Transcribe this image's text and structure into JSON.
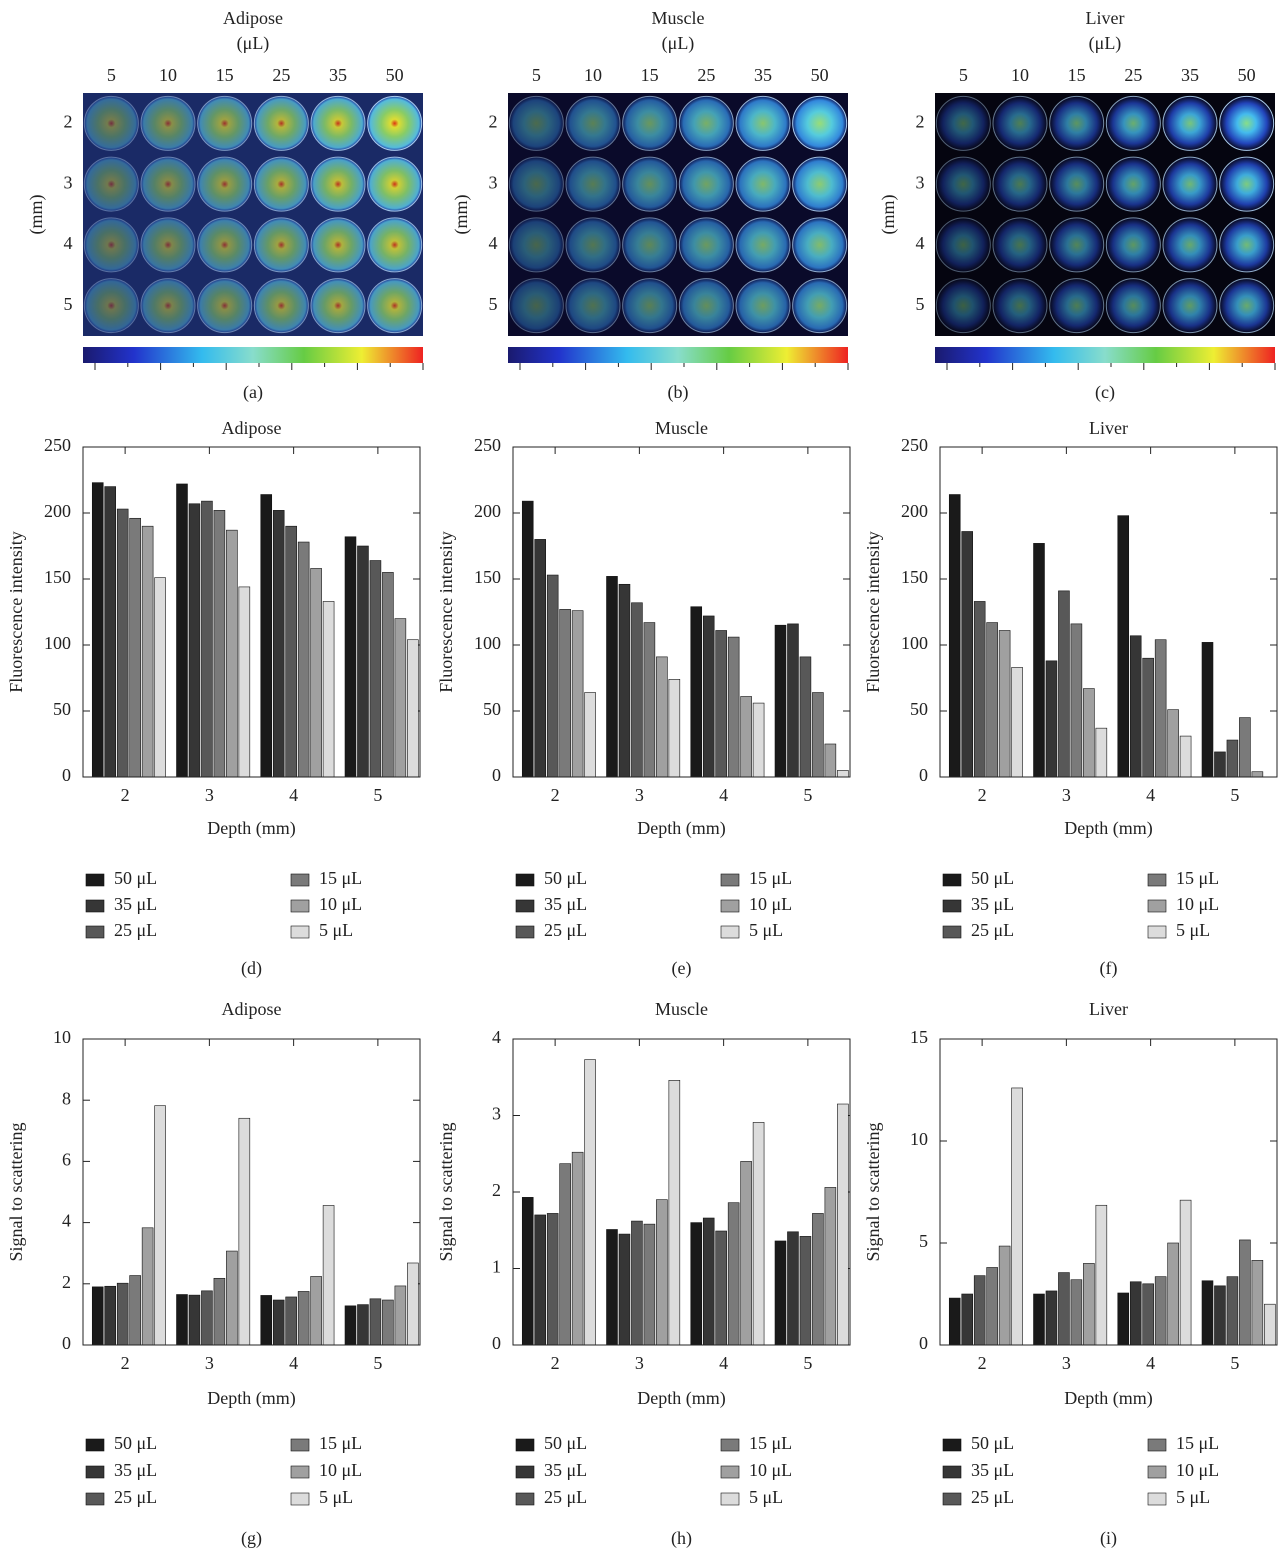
{
  "chart_data": [
    {
      "type": "image",
      "title": "Adipose",
      "unit": "(μL)",
      "columns": [
        "5",
        "10",
        "15",
        "25",
        "35",
        "50"
      ],
      "rows": [
        "2",
        "3",
        "4",
        "5"
      ],
      "ylabel": "(mm)",
      "label": "(a)"
    },
    {
      "type": "image",
      "title": "Muscle",
      "unit": "(μL)",
      "columns": [
        "5",
        "10",
        "15",
        "25",
        "35",
        "50"
      ],
      "rows": [
        "2",
        "3",
        "4",
        "5"
      ],
      "ylabel": "(mm)",
      "label": "(b)"
    },
    {
      "type": "image",
      "title": "Liver",
      "unit": "(μL)",
      "columns": [
        "5",
        "10",
        "15",
        "25",
        "35",
        "50"
      ],
      "rows": [
        "2",
        "3",
        "4",
        "5"
      ],
      "ylabel": "(mm)",
      "label": "(c)"
    },
    {
      "type": "bar",
      "title": "Adipose",
      "xlabel": "Depth (mm)",
      "ylabel": "Fluorescence intensity",
      "label": "(d)",
      "categories": [
        "2",
        "3",
        "4",
        "5"
      ],
      "ylim": [
        0,
        250
      ],
      "yticks": [
        0,
        50,
        100,
        150,
        200,
        250
      ],
      "series": [
        {
          "name": "50 μL",
          "color": "#1a1a1a",
          "values": [
            223,
            222,
            214,
            182
          ]
        },
        {
          "name": "35 μL",
          "color": "#363636",
          "values": [
            220,
            207,
            202,
            175
          ]
        },
        {
          "name": "25 μL",
          "color": "#585858",
          "values": [
            203,
            209,
            190,
            164
          ]
        },
        {
          "name": "15 μL",
          "color": "#7a7a7a",
          "values": [
            196,
            202,
            178,
            155
          ]
        },
        {
          "name": "10 μL",
          "color": "#a0a0a0",
          "values": [
            190,
            187,
            158,
            120
          ]
        },
        {
          "name": "5 μL",
          "color": "#dcdcdc",
          "values": [
            151,
            144,
            133,
            104
          ]
        }
      ]
    },
    {
      "type": "bar",
      "title": "Muscle",
      "xlabel": "Depth (mm)",
      "ylabel": "Fluorescence intensity",
      "label": "(e)",
      "categories": [
        "2",
        "3",
        "4",
        "5"
      ],
      "ylim": [
        0,
        250
      ],
      "yticks": [
        0,
        50,
        100,
        150,
        200,
        250
      ],
      "series": [
        {
          "name": "50 μL",
          "color": "#1a1a1a",
          "values": [
            209,
            152,
            129,
            115
          ]
        },
        {
          "name": "35 μL",
          "color": "#363636",
          "values": [
            180,
            146,
            122,
            116
          ]
        },
        {
          "name": "25 μL",
          "color": "#585858",
          "values": [
            153,
            132,
            111,
            91
          ]
        },
        {
          "name": "15 μL",
          "color": "#7a7a7a",
          "values": [
            127,
            117,
            106,
            64
          ]
        },
        {
          "name": "10 μL",
          "color": "#a0a0a0",
          "values": [
            126,
            91,
            61,
            25
          ]
        },
        {
          "name": "5 μL",
          "color": "#dcdcdc",
          "values": [
            64,
            74,
            56,
            5
          ]
        }
      ]
    },
    {
      "type": "bar",
      "title": "Liver",
      "xlabel": "Depth (mm)",
      "ylabel": "Fluorescence intensity",
      "label": "(f)",
      "categories": [
        "2",
        "3",
        "4",
        "5"
      ],
      "ylim": [
        0,
        250
      ],
      "yticks": [
        0,
        50,
        100,
        150,
        200,
        250
      ],
      "series": [
        {
          "name": "50 μL",
          "color": "#1a1a1a",
          "values": [
            214,
            177,
            198,
            102
          ]
        },
        {
          "name": "35 μL",
          "color": "#363636",
          "values": [
            186,
            88,
            107,
            19
          ]
        },
        {
          "name": "25 μL",
          "color": "#585858",
          "values": [
            133,
            141,
            90,
            28
          ]
        },
        {
          "name": "15 μL",
          "color": "#7a7a7a",
          "values": [
            117,
            116,
            104,
            45
          ]
        },
        {
          "name": "10 μL",
          "color": "#a0a0a0",
          "values": [
            111,
            67,
            51,
            4
          ]
        },
        {
          "name": "5 μL",
          "color": "#dcdcdc",
          "values": [
            83,
            37,
            31,
            0
          ]
        }
      ]
    },
    {
      "type": "bar",
      "title": "Adipose",
      "xlabel": "Depth (mm)",
      "ylabel": "Signal to scattering",
      "label": "(g)",
      "categories": [
        "2",
        "3",
        "4",
        "5"
      ],
      "ylim": [
        0,
        10
      ],
      "yticks": [
        0,
        2,
        4,
        6,
        8,
        10
      ],
      "series": [
        {
          "name": "50 μL",
          "color": "#1a1a1a",
          "values": [
            1.9,
            1.65,
            1.62,
            1.28
          ]
        },
        {
          "name": "35 μL",
          "color": "#363636",
          "values": [
            1.92,
            1.63,
            1.47,
            1.32
          ]
        },
        {
          "name": "25 μL",
          "color": "#585858",
          "values": [
            2.02,
            1.77,
            1.57,
            1.51
          ]
        },
        {
          "name": "15 μL",
          "color": "#7a7a7a",
          "values": [
            2.27,
            2.18,
            1.75,
            1.47
          ]
        },
        {
          "name": "10 μL",
          "color": "#a0a0a0",
          "values": [
            3.83,
            3.07,
            2.24,
            1.93
          ]
        },
        {
          "name": "5 μL",
          "color": "#dcdcdc",
          "values": [
            7.82,
            7.41,
            4.56,
            2.68
          ]
        }
      ]
    },
    {
      "type": "bar",
      "title": "Muscle",
      "xlabel": "Depth (mm)",
      "ylabel": "Signal to scattering",
      "label": "(h)",
      "categories": [
        "2",
        "3",
        "4",
        "5"
      ],
      "ylim": [
        0,
        4
      ],
      "yticks": [
        0,
        1,
        2,
        3,
        4
      ],
      "series": [
        {
          "name": "50 μL",
          "color": "#1a1a1a",
          "values": [
            1.93,
            1.51,
            1.6,
            1.36
          ]
        },
        {
          "name": "35 μL",
          "color": "#363636",
          "values": [
            1.7,
            1.45,
            1.66,
            1.48
          ]
        },
        {
          "name": "25 μL",
          "color": "#585858",
          "values": [
            1.72,
            1.62,
            1.49,
            1.42
          ]
        },
        {
          "name": "15 μL",
          "color": "#7a7a7a",
          "values": [
            2.37,
            1.58,
            1.86,
            1.72
          ]
        },
        {
          "name": "10 μL",
          "color": "#a0a0a0",
          "values": [
            2.52,
            1.9,
            2.4,
            2.06
          ]
        },
        {
          "name": "5 μL",
          "color": "#dcdcdc",
          "values": [
            3.73,
            3.46,
            2.91,
            3.15
          ]
        }
      ]
    },
    {
      "type": "bar",
      "title": "Liver",
      "xlabel": "Depth (mm)",
      "ylabel": "Signal to scattering",
      "label": "(i)",
      "categories": [
        "2",
        "3",
        "4",
        "5"
      ],
      "ylim": [
        0,
        15
      ],
      "yticks": [
        0,
        5,
        10,
        15
      ],
      "series": [
        {
          "name": "50 μL",
          "color": "#1a1a1a",
          "values": [
            2.3,
            2.5,
            2.55,
            3.15
          ]
        },
        {
          "name": "35 μL",
          "color": "#363636",
          "values": [
            2.5,
            2.65,
            3.1,
            2.9
          ]
        },
        {
          "name": "25 μL",
          "color": "#585858",
          "values": [
            3.4,
            3.55,
            3.0,
            3.35
          ]
        },
        {
          "name": "15 μL",
          "color": "#7a7a7a",
          "values": [
            3.8,
            3.2,
            3.35,
            5.15
          ]
        },
        {
          "name": "10 μL",
          "color": "#a0a0a0",
          "values": [
            4.85,
            4.0,
            5.0,
            4.15
          ]
        },
        {
          "name": "5 μL",
          "color": "#dcdcdc",
          "values": [
            12.6,
            6.85,
            7.1,
            2.0
          ]
        }
      ]
    }
  ]
}
